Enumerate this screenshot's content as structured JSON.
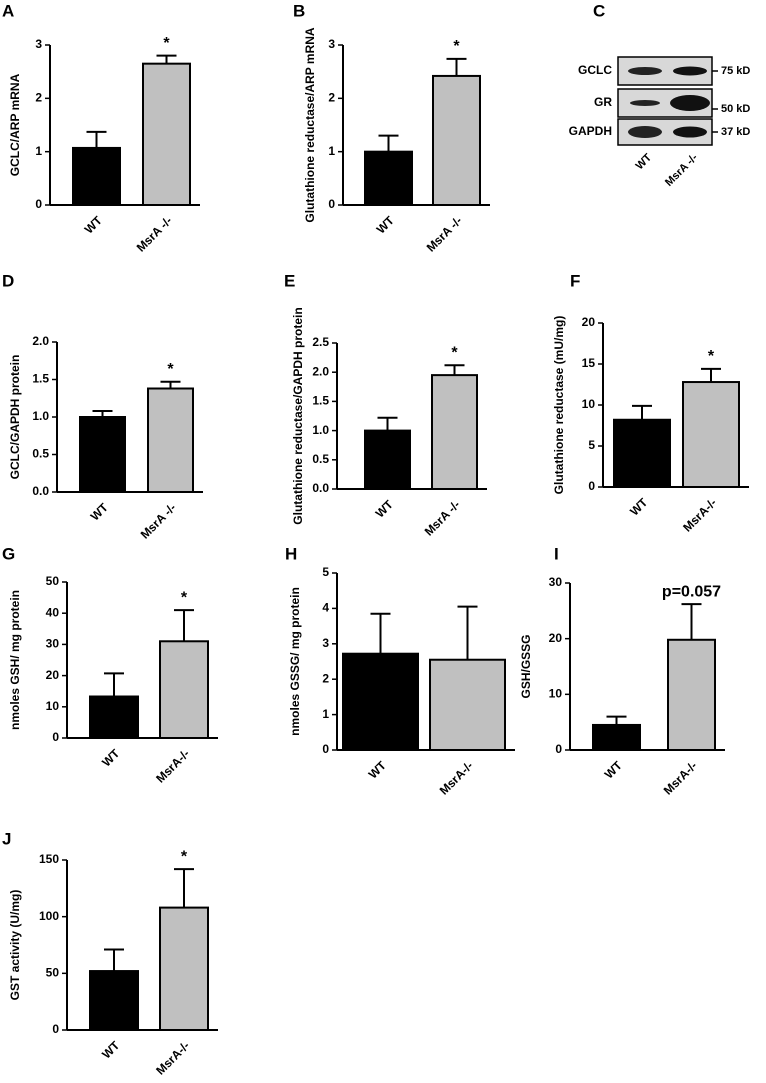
{
  "chart_data": [
    {
      "type": "bar",
      "panel": "A",
      "ylabel": "GCLC/ARP mRNA",
      "categories": [
        "WT",
        "MsrA -/-"
      ],
      "values": [
        1.07,
        2.65
      ],
      "errors": [
        0.3,
        0.15
      ],
      "colors": [
        "#000000",
        "#c0c0c0"
      ],
      "ylim": [
        0,
        3
      ],
      "yticks": [
        0,
        1,
        2,
        3
      ],
      "annotation": "*"
    },
    {
      "type": "bar",
      "panel": "B",
      "ylabel": "Glutathione reductase/ARP mRNA",
      "categories": [
        "WT",
        "MsrA -/-"
      ],
      "values": [
        1.0,
        2.42
      ],
      "errors": [
        0.3,
        0.32
      ],
      "colors": [
        "#000000",
        "#c0c0c0"
      ],
      "ylim": [
        0,
        3
      ],
      "yticks": [
        0,
        1,
        2,
        3
      ],
      "annotation": "*"
    },
    {
      "type": "bar",
      "panel": "D",
      "ylabel": "GCLC/GAPDH protein",
      "categories": [
        "WT",
        "MsrA -/-"
      ],
      "values": [
        1.0,
        1.38
      ],
      "errors": [
        0.08,
        0.09
      ],
      "colors": [
        "#000000",
        "#c0c0c0"
      ],
      "ylim": [
        0,
        2
      ],
      "yticks": [
        {
          "value": 0,
          "label": "0.0"
        },
        {
          "value": 0.5,
          "label": "0.5"
        },
        {
          "value": 1,
          "label": "1.0"
        },
        {
          "value": 1.5,
          "label": "1.5"
        },
        {
          "value": 2,
          "label": "2.0"
        }
      ],
      "annotation": "*"
    },
    {
      "type": "bar",
      "panel": "E",
      "ylabel": "Glutathione reductase/GAPDH protein",
      "categories": [
        "WT",
        "MsrA -/-"
      ],
      "values": [
        1.0,
        1.95
      ],
      "errors": [
        0.22,
        0.17
      ],
      "colors": [
        "#000000",
        "#c0c0c0"
      ],
      "ylim": [
        0,
        2.5
      ],
      "yticks": [
        {
          "value": 0,
          "label": "0.0"
        },
        {
          "value": 0.5,
          "label": "0.5"
        },
        {
          "value": 1,
          "label": "1.0"
        },
        {
          "value": 1.5,
          "label": "1.5"
        },
        {
          "value": 2,
          "label": "2.0"
        },
        {
          "value": 2.5,
          "label": "2.5"
        }
      ],
      "annotation": "*"
    },
    {
      "type": "bar",
      "panel": "F",
      "ylabel": "Glutathione reductase (mU/mg)",
      "categories": [
        "WT",
        "MsrA-/-"
      ],
      "values": [
        8.2,
        12.8
      ],
      "errors": [
        1.7,
        1.6
      ],
      "colors": [
        "#000000",
        "#c0c0c0"
      ],
      "ylim": [
        0,
        20
      ],
      "yticks": [
        0,
        5,
        10,
        15,
        20
      ],
      "annotation": "*"
    },
    {
      "type": "bar",
      "panel": "G",
      "ylabel": "nmoles GSH/ mg protein",
      "categories": [
        "WT",
        "MsrA-/-"
      ],
      "values": [
        13.3,
        31
      ],
      "errors": [
        7.4,
        10
      ],
      "colors": [
        "#000000",
        "#c0c0c0"
      ],
      "ylim": [
        0,
        50
      ],
      "yticks": [
        0,
        10,
        20,
        30,
        40,
        50
      ],
      "annotation": "*"
    },
    {
      "type": "bar",
      "panel": "H",
      "ylabel": "nmoles GSSG/ mg protein",
      "categories": [
        "WT",
        "MsrA-/-"
      ],
      "values": [
        2.72,
        2.55
      ],
      "errors": [
        1.13,
        1.5
      ],
      "colors": [
        "#000000",
        "#c0c0c0"
      ],
      "ylim": [
        0,
        5
      ],
      "yticks": [
        0,
        1,
        2,
        3,
        4,
        5
      ]
    },
    {
      "type": "bar",
      "panel": "I",
      "ylabel": "GSH/GSSG",
      "categories": [
        "WT",
        "MsrA-/-"
      ],
      "values": [
        4.5,
        19.8
      ],
      "errors": [
        1.5,
        6.4
      ],
      "colors": [
        "#000000",
        "#c0c0c0"
      ],
      "ylim": [
        0,
        30
      ],
      "yticks": [
        0,
        10,
        20,
        30
      ],
      "annotation": "p=0.057"
    },
    {
      "type": "bar",
      "panel": "J",
      "ylabel": "GST activity (U/mg)",
      "categories": [
        "WT",
        "MsrA-/-"
      ],
      "values": [
        52,
        108
      ],
      "errors": [
        19,
        34
      ],
      "colors": [
        "#000000",
        "#c0c0c0"
      ],
      "ylim": [
        0,
        150
      ],
      "yticks": [
        0,
        50,
        100,
        150
      ],
      "annotation": "*"
    }
  ],
  "blot": {
    "panel": "C",
    "rows": [
      {
        "name": "GCLC",
        "size": "75 kD"
      },
      {
        "name": "GR",
        "size": "50 kD"
      },
      {
        "name": "GAPDH",
        "size": "37 kD"
      }
    ],
    "lanes": [
      "WT",
      "MsrA -/-"
    ]
  }
}
